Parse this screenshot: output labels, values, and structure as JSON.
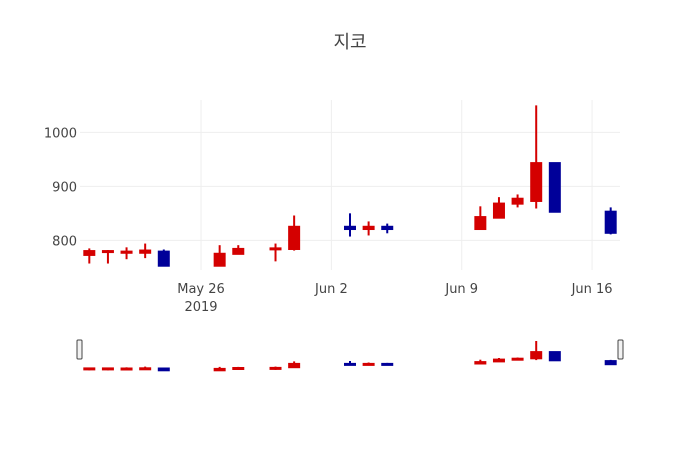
{
  "chart_data": {
    "type": "candlestick",
    "title": "지코",
    "xlabel": "",
    "ylabel": "",
    "ylim": [
      745,
      1060
    ],
    "y_ticks": [
      800,
      900,
      1000
    ],
    "x_ticks": [
      {
        "date": "2019-05-26",
        "label": "May 26",
        "sublabel": "2019"
      },
      {
        "date": "2019-06-02",
        "label": "Jun 2",
        "sublabel": ""
      },
      {
        "date": "2019-06-09",
        "label": "Jun 9",
        "sublabel": ""
      },
      {
        "date": "2019-06-16",
        "label": "Jun 16",
        "sublabel": ""
      }
    ],
    "xlim": [
      "2019-05-19T12:00",
      "2019-06-17T12:00"
    ],
    "grid": true,
    "legend": false,
    "rangeslider": true,
    "colors": {
      "increasing": "#d40000",
      "decreasing": "#000099"
    },
    "x": [
      "2019-05-20",
      "2019-05-21",
      "2019-05-22",
      "2019-05-23",
      "2019-05-24",
      "2019-05-27",
      "2019-05-28",
      "2019-05-30",
      "2019-05-31",
      "2019-06-03",
      "2019-06-04",
      "2019-06-05",
      "2019-06-10",
      "2019-06-11",
      "2019-06-12",
      "2019-06-13",
      "2019-06-14",
      "2019-06-17"
    ],
    "series": [
      {
        "name": "open",
        "values": [
          772,
          778,
          776,
          776,
          780,
          752,
          774,
          783,
          783,
          826,
          820,
          826,
          820,
          841,
          867,
          872,
          944,
          854
        ]
      },
      {
        "name": "high",
        "values": [
          785,
          782,
          787,
          794,
          783,
          791,
          791,
          794,
          846,
          850,
          835,
          831,
          863,
          880,
          885,
          1050,
          944,
          861
        ]
      },
      {
        "name": "low",
        "values": [
          757,
          757,
          765,
          767,
          752,
          752,
          774,
          761,
          781,
          807,
          809,
          813,
          820,
          841,
          861,
          859,
          852,
          811
        ]
      },
      {
        "name": "close",
        "values": [
          781,
          781,
          780,
          782,
          752,
          776,
          785,
          786,
          826,
          820,
          826,
          820,
          844,
          869,
          878,
          944,
          852,
          813
        ]
      }
    ]
  }
}
